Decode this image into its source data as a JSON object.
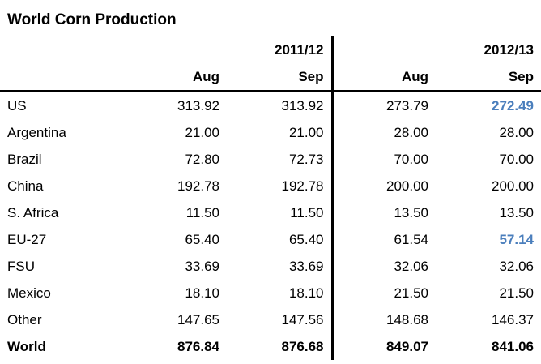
{
  "title": "World Corn Production",
  "colors": {
    "text": "#000000",
    "background": "#ffffff",
    "highlight_blue": "#4a7ebc",
    "rule_line": "#000000"
  },
  "chart_data": {
    "type": "table",
    "title": "World Corn Production",
    "column_groups": [
      "2011/12",
      "2012/13"
    ],
    "columns": [
      "Aug",
      "Sep",
      "Aug",
      "Sep"
    ],
    "highlight_color": "#4a7ebc",
    "rows": [
      {
        "label": "US",
        "values": [
          313.92,
          313.92,
          273.79,
          272.49
        ],
        "highlight_cols": [
          3
        ]
      },
      {
        "label": "Argentina",
        "values": [
          21.0,
          21.0,
          28.0,
          28.0
        ]
      },
      {
        "label": "Brazil",
        "values": [
          72.8,
          72.73,
          70.0,
          70.0
        ]
      },
      {
        "label": "China",
        "values": [
          192.78,
          192.78,
          200.0,
          200.0
        ]
      },
      {
        "label": "S. Africa",
        "values": [
          11.5,
          11.5,
          13.5,
          13.5
        ]
      },
      {
        "label": "EU-27",
        "values": [
          65.4,
          65.4,
          61.54,
          57.14
        ],
        "highlight_cols": [
          3
        ]
      },
      {
        "label": "FSU",
        "values": [
          33.69,
          33.69,
          32.06,
          32.06
        ]
      },
      {
        "label": "Mexico",
        "values": [
          18.1,
          18.1,
          21.5,
          21.5
        ]
      },
      {
        "label": "Other",
        "values": [
          147.65,
          147.56,
          148.68,
          146.37
        ]
      },
      {
        "label": "World",
        "values": [
          876.84,
          876.68,
          849.07,
          841.06
        ],
        "bold": true
      }
    ]
  }
}
